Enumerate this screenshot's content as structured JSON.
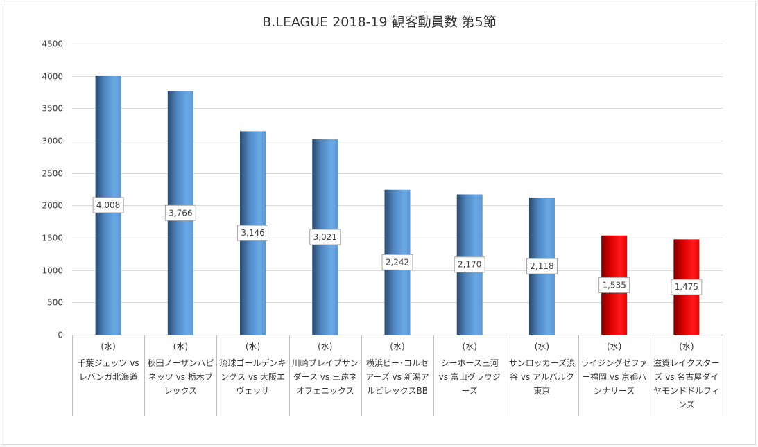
{
  "chart_data": {
    "type": "bar",
    "title": "B.LEAGUE 2018-19 観客動員数 第5節",
    "ylim": [
      0,
      4500
    ],
    "yticks": [
      0,
      500,
      1000,
      1500,
      2000,
      2500,
      3000,
      3500,
      4000,
      4500
    ],
    "grid": true,
    "legend": "none",
    "categories": [
      {
        "day": "(水)",
        "name": "千葉ジェッツ vs レバンガ北海道"
      },
      {
        "day": "(水)",
        "name": "秋田ノーザンハピネッツ vs 栃木ブレックス"
      },
      {
        "day": "(水)",
        "name": "琉球ゴールデンキングス vs 大阪エヴェッサ"
      },
      {
        "day": "(水)",
        "name": "川崎ブレイブサンダース vs 三遠ネオフェニックス"
      },
      {
        "day": "(水)",
        "name": "横浜ビー･コルセアーズ vs 新潟アルビレックスBB"
      },
      {
        "day": "(水)",
        "name": "シーホース三河 vs 富山グラウジーズ"
      },
      {
        "day": "(水)",
        "name": "サンロッカーズ渋谷 vs アルバルク東京"
      },
      {
        "day": "(水)",
        "name": "ライジングゼファー福岡 vs 京都ハンナリーズ"
      },
      {
        "day": "(水)",
        "name": "滋賀レイクスターズ vs 名古屋ダイヤモンドドルフィンズ"
      }
    ],
    "values": [
      4008,
      3766,
      3146,
      3021,
      2242,
      2170,
      2118,
      1535,
      1475
    ],
    "value_labels": [
      "4,008",
      "3,766",
      "3,146",
      "3,021",
      "2,242",
      "2,170",
      "2,118",
      "1,535",
      "1,475"
    ],
    "bar_colors": [
      "blue",
      "blue",
      "blue",
      "blue",
      "blue",
      "blue",
      "blue",
      "red",
      "red"
    ],
    "colors": {
      "blue": "#5b9bd5",
      "red": "#ff0000"
    }
  }
}
